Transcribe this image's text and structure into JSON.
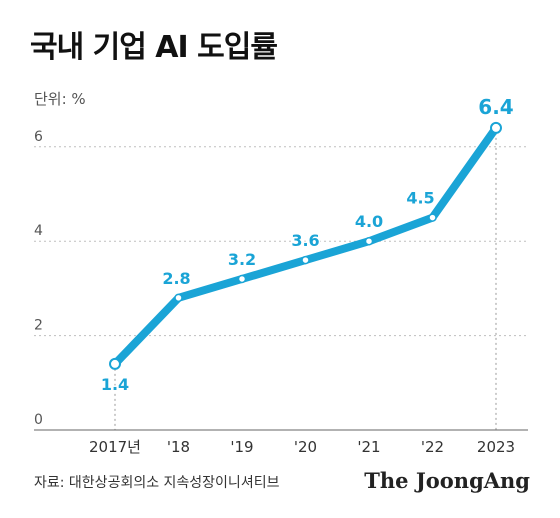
{
  "title": "국내 기업 AI 도입률",
  "unit_label": "단위: %",
  "source": "자료: 대한상공회의소 지속성장이니셔티브",
  "brand": "The JoongAng",
  "colors": {
    "line": "#1aa4d6",
    "label": "#1aa4d6",
    "grid": "#bfbfbf",
    "axis": "#555555",
    "marker_fill": "#ffffff"
  },
  "chart_data": {
    "type": "line",
    "title": "국내 기업 AI 도입률",
    "ylabel": "단위: %",
    "xlabel": "",
    "categories": [
      "2017년",
      "'18",
      "'19",
      "'20",
      "'21",
      "'22",
      "2023"
    ],
    "values": [
      1.4,
      2.8,
      3.2,
      3.6,
      4.0,
      4.5,
      6.4
    ],
    "data_labels": [
      "1.4",
      "2.8",
      "3.2",
      "3.6",
      "4.0",
      "4.5",
      "6.4"
    ],
    "ylim": [
      0,
      6.6
    ],
    "yticks": [
      0,
      2,
      4,
      6
    ],
    "grid": true,
    "legend": "none"
  }
}
